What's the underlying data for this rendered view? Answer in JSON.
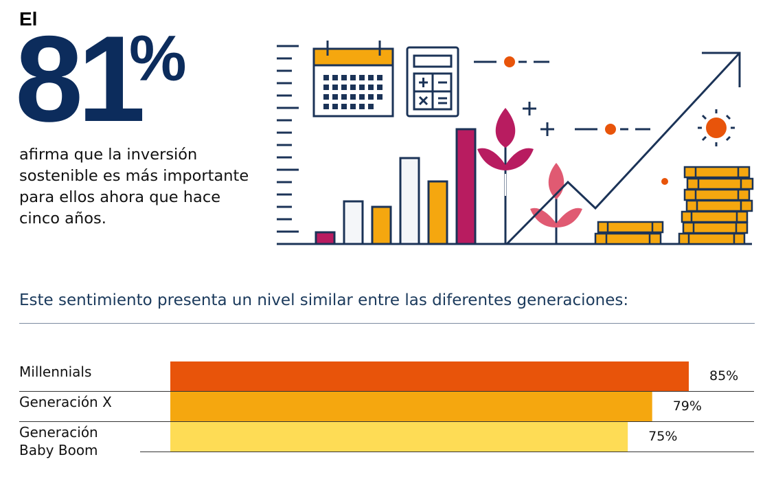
{
  "headline": {
    "prefix": "El",
    "number": "81",
    "percent_sign": "%",
    "description": "afirma que la inversión sostenible es más importante para ellos ahora que hace cinco años."
  },
  "subtitle": "Este sentimiento presenta un nivel similar entre las diferentes generaciones:",
  "chart_data": {
    "type": "bar",
    "orientation": "horizontal",
    "categories": [
      "Millennials",
      "Generación X",
      "Generación Baby Boom"
    ],
    "category_display": [
      [
        "Millennials"
      ],
      [
        "Generación X"
      ],
      [
        "Generación",
        "Baby Boom"
      ]
    ],
    "values": [
      85,
      79,
      75
    ],
    "value_labels": [
      "85%",
      "79%",
      "75%"
    ],
    "colors": [
      "#e8540a",
      "#f5a70f",
      "#fedc55"
    ],
    "xlim": [
      0,
      100
    ],
    "title": "",
    "xlabel": "",
    "ylabel": ""
  },
  "illustration_colors": {
    "navy": "#1b3357",
    "magenta": "#b81c60",
    "orange": "#f5a70f",
    "red_orange": "#e8540a",
    "pink": "#e05a72",
    "light": "#f4f6f9"
  }
}
